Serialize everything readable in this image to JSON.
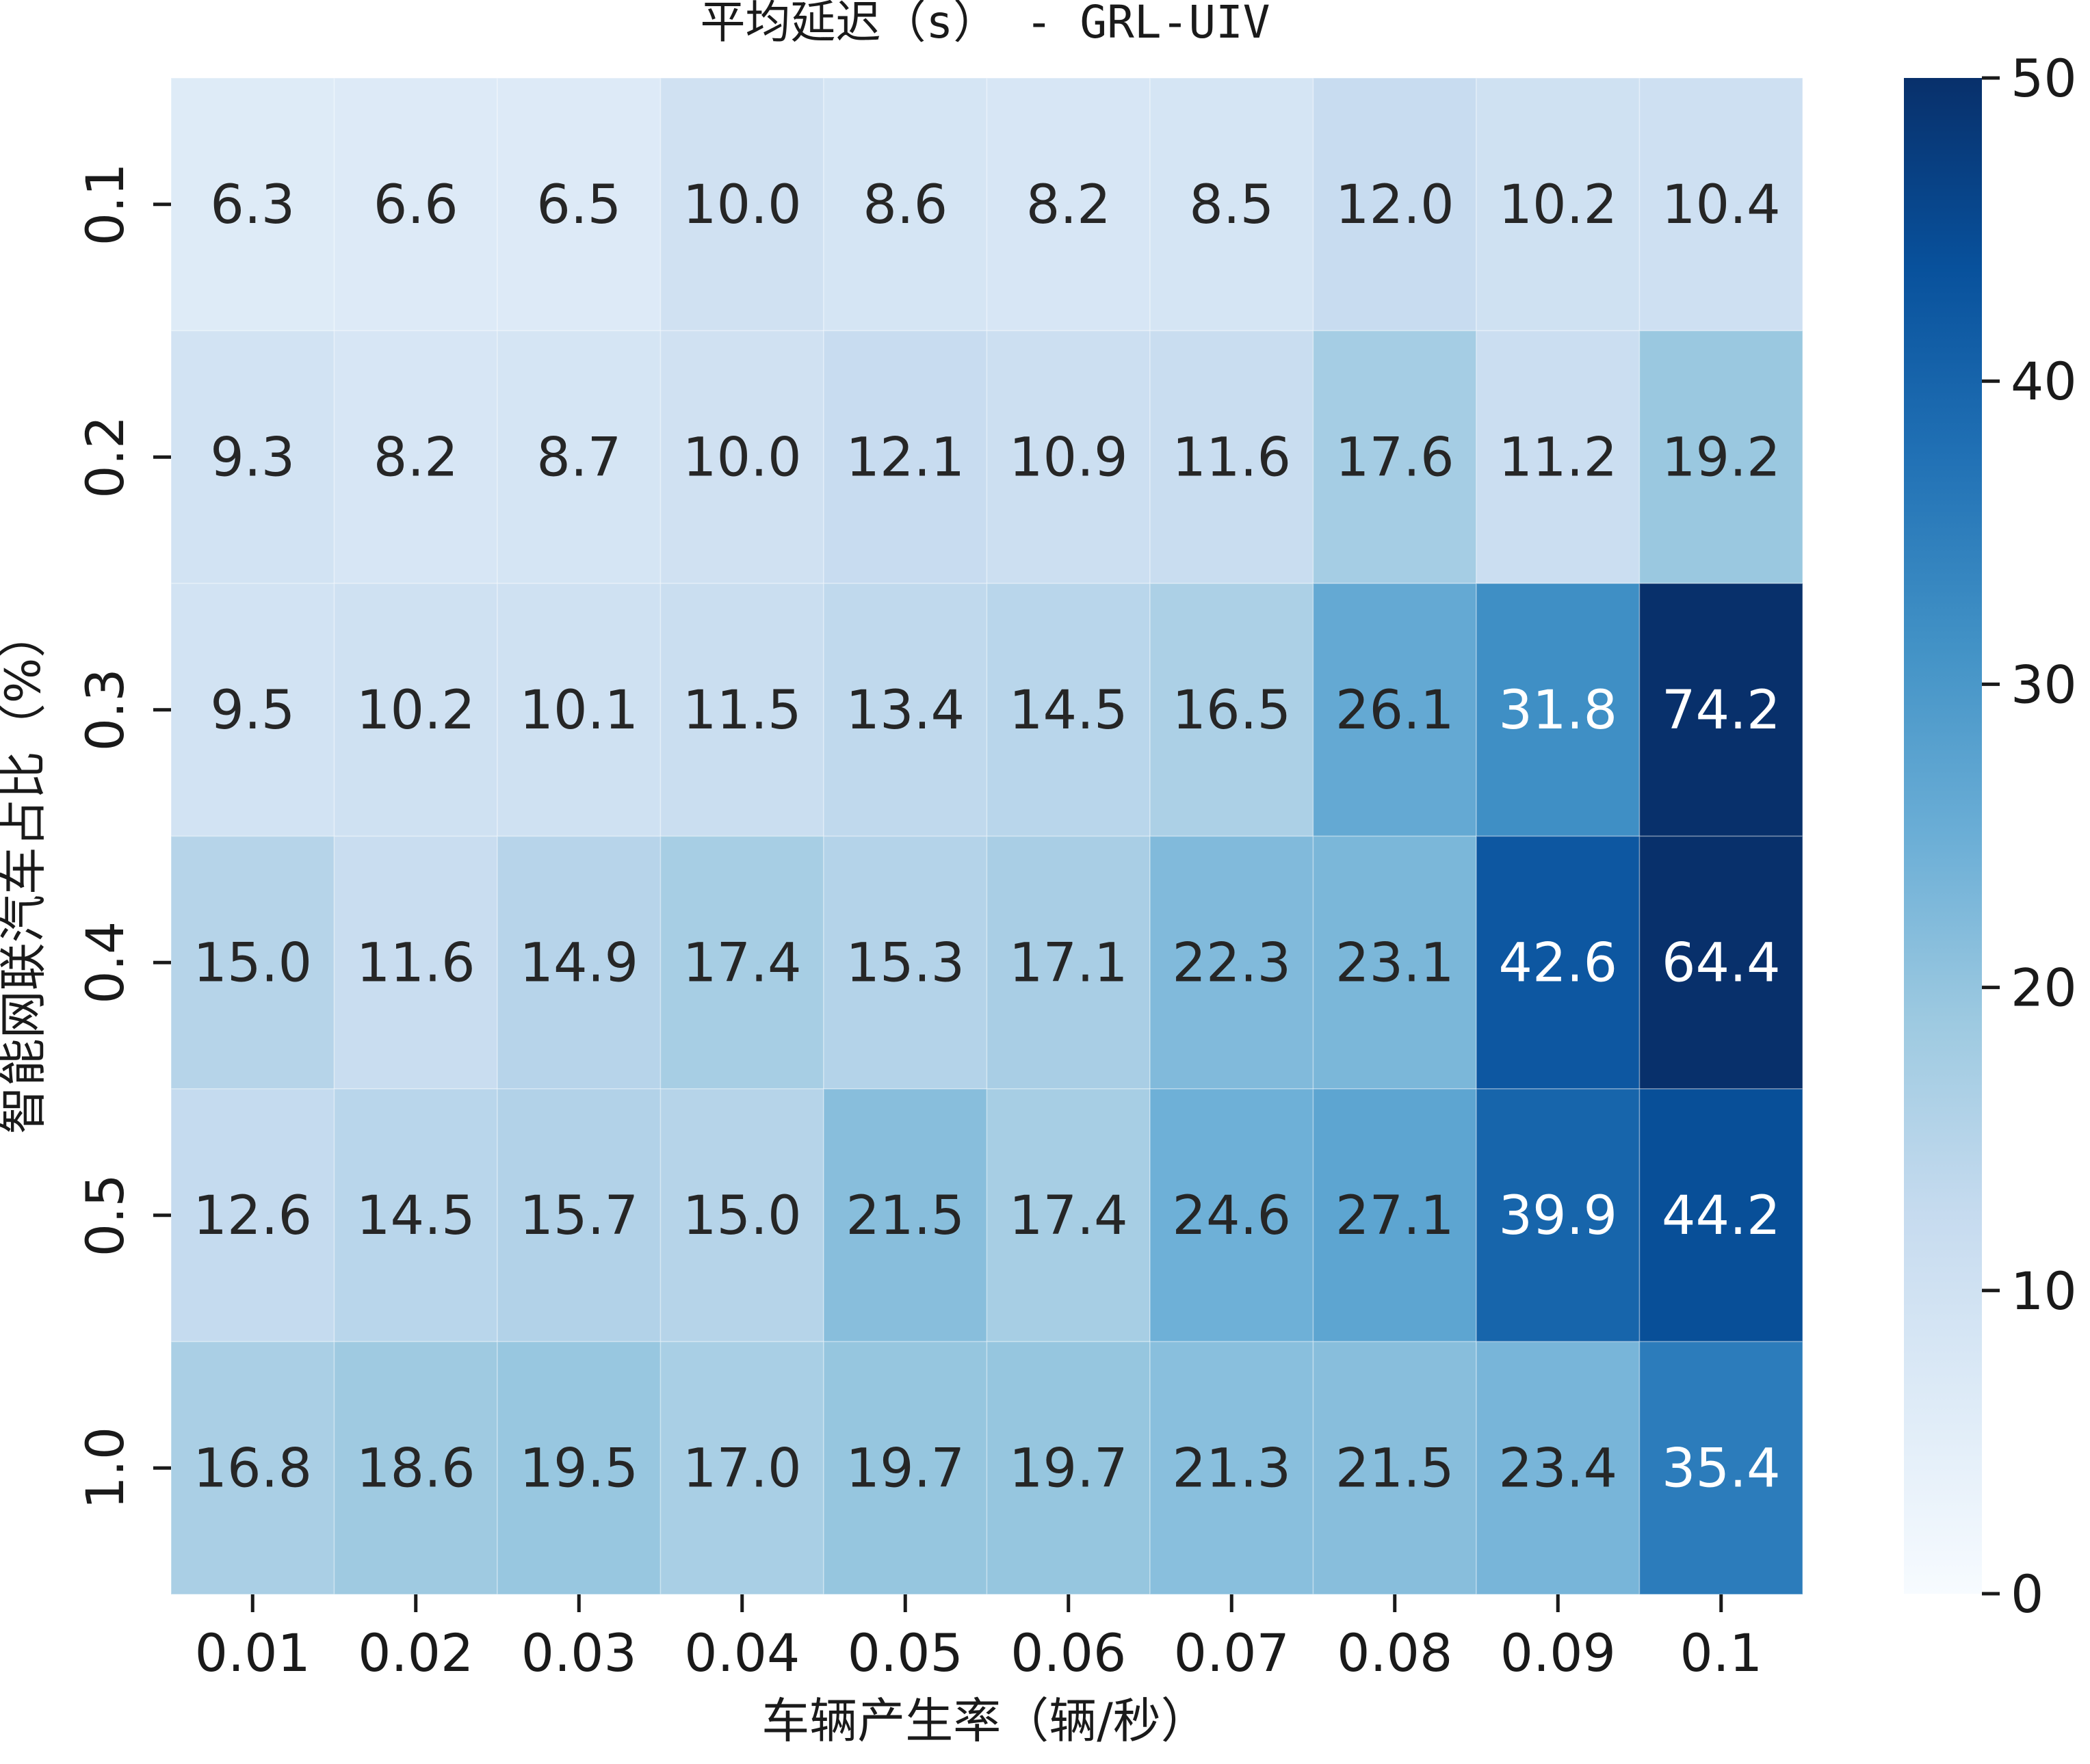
{
  "chart_data": {
    "type": "heatmap",
    "title": "平均延迟（s） - GRL-UIV",
    "xlabel": "车辆产生率（辆/秒）",
    "ylabel": "智能网联汽车占比（%）",
    "x_categories": [
      "0.01",
      "0.02",
      "0.03",
      "0.04",
      "0.05",
      "0.06",
      "0.07",
      "0.08",
      "0.09",
      "0.1"
    ],
    "y_categories": [
      "0.1",
      "0.2",
      "0.3",
      "0.4",
      "0.5",
      "1.0"
    ],
    "values": [
      [
        6.3,
        6.6,
        6.5,
        10.0,
        8.6,
        8.2,
        8.5,
        12.0,
        10.2,
        10.4
      ],
      [
        9.3,
        8.2,
        8.7,
        10.0,
        12.1,
        10.9,
        11.6,
        17.6,
        11.2,
        19.2
      ],
      [
        9.5,
        10.2,
        10.1,
        11.5,
        13.4,
        14.5,
        16.5,
        26.1,
        31.8,
        74.2
      ],
      [
        15.0,
        11.6,
        14.9,
        17.4,
        15.3,
        17.1,
        22.3,
        23.1,
        42.6,
        64.4
      ],
      [
        12.6,
        14.5,
        15.7,
        15.0,
        21.5,
        17.4,
        24.6,
        27.1,
        39.9,
        44.2
      ],
      [
        16.8,
        18.6,
        19.5,
        17.0,
        19.7,
        19.7,
        21.3,
        21.5,
        23.4,
        35.4
      ]
    ],
    "value_labels": [
      [
        "6.3",
        "6.6",
        "6.5",
        "10.0",
        "8.6",
        "8.2",
        "8.5",
        "12.0",
        "10.2",
        "10.4"
      ],
      [
        "9.3",
        "8.2",
        "8.7",
        "10.0",
        "12.1",
        "10.9",
        "11.6",
        "17.6",
        "11.2",
        "19.2"
      ],
      [
        "9.5",
        "10.2",
        "10.1",
        "11.5",
        "13.4",
        "14.5",
        "16.5",
        "26.1",
        "31.8",
        "74.2"
      ],
      [
        "15.0",
        "11.6",
        "14.9",
        "17.4",
        "15.3",
        "17.1",
        "22.3",
        "23.1",
        "42.6",
        "64.4"
      ],
      [
        "12.6",
        "14.5",
        "15.7",
        "15.0",
        "21.5",
        "17.4",
        "24.6",
        "27.1",
        "39.9",
        "44.2"
      ],
      [
        "16.8",
        "18.6",
        "19.5",
        "17.0",
        "19.7",
        "19.7",
        "21.3",
        "21.5",
        "23.4",
        "35.4"
      ]
    ],
    "colormap": "Blues",
    "vmin": 0,
    "vmax": 50,
    "colorbar_ticks": [
      0,
      10,
      20,
      30,
      40,
      50
    ],
    "colorbar_tick_labels": [
      "0",
      "10",
      "20",
      "30",
      "40",
      "50"
    ],
    "text_color_dark": "#262626",
    "text_color_light": "#ffffff"
  }
}
